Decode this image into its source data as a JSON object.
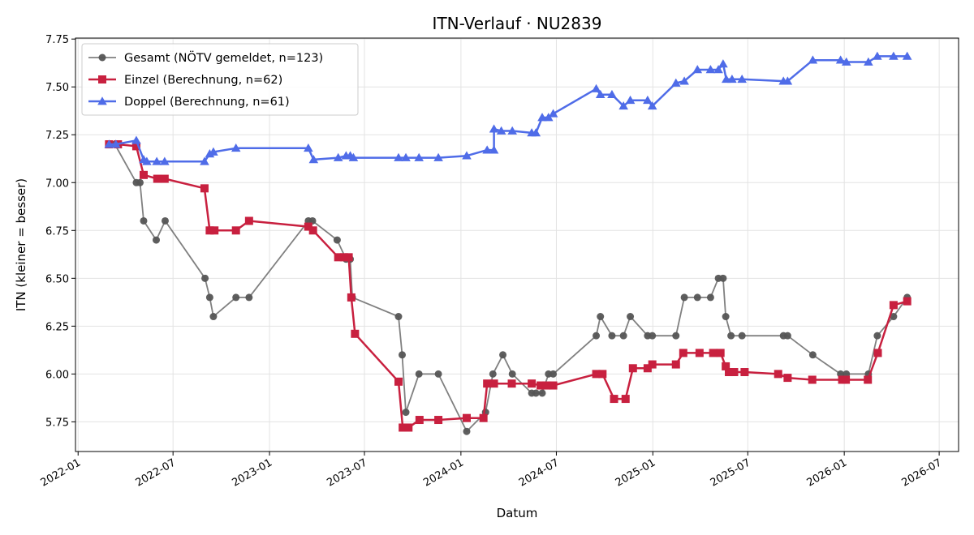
{
  "chart_data": {
    "type": "line",
    "title": "ITN-Verlauf · NU2839",
    "xlabel": "Datum",
    "ylabel": "ITN  (kleiner = besser)",
    "x_type": "date",
    "xlim": [
      "2021-12-27",
      "2026-08-07"
    ],
    "ylim": [
      5.595,
      7.755
    ],
    "yticks": [
      5.75,
      6.0,
      6.25,
      6.5,
      6.75,
      7.0,
      7.25,
      7.5,
      7.75
    ],
    "xticks": [
      "2022-01-01",
      "2022-07-01",
      "2023-01-01",
      "2023-07-01",
      "2024-01-01",
      "2024-07-01",
      "2025-01-01",
      "2025-07-01",
      "2026-01-01",
      "2026-07-01"
    ],
    "xtick_labels": [
      "2022-01",
      "2022-07",
      "2023-01",
      "2023-07",
      "2024-01",
      "2024-07",
      "2025-01",
      "2025-07",
      "2026-01",
      "2026-07"
    ],
    "grid": true,
    "legend_position": "top-left",
    "series": [
      {
        "name": "Gesamt (NÖTV gemeldet, n=123)",
        "color": "#555555",
        "marker": "circle",
        "points": [
          [
            "2022-03-01",
            7.2
          ],
          [
            "2022-03-12",
            7.2
          ],
          [
            "2022-04-22",
            7.0
          ],
          [
            "2022-04-29",
            7.0
          ],
          [
            "2022-05-06",
            6.8
          ],
          [
            "2022-05-30",
            6.7
          ],
          [
            "2022-06-16",
            6.8
          ],
          [
            "2022-08-31",
            6.5
          ],
          [
            "2022-09-09",
            6.4
          ],
          [
            "2022-09-16",
            6.3
          ],
          [
            "2022-10-29",
            6.4
          ],
          [
            "2022-11-23",
            6.4
          ],
          [
            "2023-03-16",
            6.8
          ],
          [
            "2023-03-24",
            6.8
          ],
          [
            "2023-05-10",
            6.7
          ],
          [
            "2023-05-27",
            6.6
          ],
          [
            "2023-06-04",
            6.6
          ],
          [
            "2023-06-08",
            6.4
          ],
          [
            "2023-09-04",
            6.3
          ],
          [
            "2023-09-11",
            6.1
          ],
          [
            "2023-09-18",
            5.8
          ],
          [
            "2023-10-13",
            6.0
          ],
          [
            "2023-11-19",
            6.0
          ],
          [
            "2024-01-12",
            5.7
          ],
          [
            "2024-02-17",
            5.8
          ],
          [
            "2024-03-02",
            6.0
          ],
          [
            "2024-03-21",
            6.1
          ],
          [
            "2024-04-08",
            6.0
          ],
          [
            "2024-05-15",
            5.9
          ],
          [
            "2024-05-23",
            5.9
          ],
          [
            "2024-06-04",
            5.9
          ],
          [
            "2024-06-16",
            6.0
          ],
          [
            "2024-06-25",
            6.0
          ],
          [
            "2024-09-15",
            6.2
          ],
          [
            "2024-09-23",
            6.3
          ],
          [
            "2024-10-15",
            6.2
          ],
          [
            "2024-11-06",
            6.2
          ],
          [
            "2024-11-19",
            6.3
          ],
          [
            "2024-12-22",
            6.2
          ],
          [
            "2024-12-31",
            6.2
          ],
          [
            "2025-02-14",
            6.2
          ],
          [
            "2025-03-02",
            6.4
          ],
          [
            "2025-03-27",
            6.4
          ],
          [
            "2025-04-21",
            6.4
          ],
          [
            "2025-05-06",
            6.5
          ],
          [
            "2025-05-15",
            6.5
          ],
          [
            "2025-05-20",
            6.3
          ],
          [
            "2025-05-30",
            6.2
          ],
          [
            "2025-06-20",
            6.2
          ],
          [
            "2025-09-07",
            6.2
          ],
          [
            "2025-09-15",
            6.2
          ],
          [
            "2025-11-02",
            6.1
          ],
          [
            "2025-12-25",
            6.0
          ],
          [
            "2026-01-05",
            6.0
          ],
          [
            "2026-02-16",
            6.0
          ],
          [
            "2026-03-05",
            6.2
          ],
          [
            "2026-04-05",
            6.3
          ],
          [
            "2026-05-01",
            6.4
          ]
        ]
      },
      {
        "name": "Einzel (Berechnung, n=62)",
        "color": "#c8203f",
        "marker": "square",
        "points": [
          [
            "2022-03-01",
            7.2
          ],
          [
            "2022-03-18",
            7.2
          ],
          [
            "2022-04-22",
            7.19
          ],
          [
            "2022-05-06",
            7.04
          ],
          [
            "2022-06-01",
            7.02
          ],
          [
            "2022-06-15",
            7.02
          ],
          [
            "2022-08-30",
            6.97
          ],
          [
            "2022-09-09",
            6.75
          ],
          [
            "2022-09-18",
            6.75
          ],
          [
            "2022-10-29",
            6.75
          ],
          [
            "2022-11-23",
            6.8
          ],
          [
            "2023-03-16",
            6.77
          ],
          [
            "2023-03-25",
            6.75
          ],
          [
            "2023-05-12",
            6.61
          ],
          [
            "2023-05-23",
            6.61
          ],
          [
            "2023-06-01",
            6.61
          ],
          [
            "2023-06-06",
            6.4
          ],
          [
            "2023-06-13",
            6.21
          ],
          [
            "2023-09-04",
            5.96
          ],
          [
            "2023-09-12",
            5.72
          ],
          [
            "2023-09-23",
            5.72
          ],
          [
            "2023-10-14",
            5.76
          ],
          [
            "2023-11-19",
            5.76
          ],
          [
            "2024-01-12",
            5.77
          ],
          [
            "2024-02-13",
            5.77
          ],
          [
            "2024-02-20",
            5.95
          ],
          [
            "2024-03-04",
            5.95
          ],
          [
            "2024-04-07",
            5.95
          ],
          [
            "2024-05-15",
            5.95
          ],
          [
            "2024-06-01",
            5.94
          ],
          [
            "2024-06-12",
            5.94
          ],
          [
            "2024-06-25",
            5.94
          ],
          [
            "2024-09-15",
            6.0
          ],
          [
            "2024-09-27",
            6.0
          ],
          [
            "2024-10-19",
            5.87
          ],
          [
            "2024-11-10",
            5.87
          ],
          [
            "2024-11-24",
            6.03
          ],
          [
            "2024-12-22",
            6.03
          ],
          [
            "2024-12-31",
            6.05
          ],
          [
            "2025-02-14",
            6.05
          ],
          [
            "2025-02-28",
            6.11
          ],
          [
            "2025-03-31",
            6.11
          ],
          [
            "2025-04-26",
            6.11
          ],
          [
            "2025-05-10",
            6.11
          ],
          [
            "2025-05-20",
            6.04
          ],
          [
            "2025-05-26",
            6.01
          ],
          [
            "2025-06-05",
            6.01
          ],
          [
            "2025-06-25",
            6.01
          ],
          [
            "2025-08-28",
            6.0
          ],
          [
            "2025-09-15",
            5.98
          ],
          [
            "2025-11-01",
            5.97
          ],
          [
            "2025-12-28",
            5.97
          ],
          [
            "2026-01-04",
            5.97
          ],
          [
            "2026-02-15",
            5.97
          ],
          [
            "2026-03-06",
            6.11
          ],
          [
            "2026-04-05",
            6.36
          ],
          [
            "2026-05-01",
            6.38
          ]
        ]
      },
      {
        "name": "Doppel (Berechnung, n=61)",
        "color": "#4f6ce8",
        "marker": "triangle",
        "points": [
          [
            "2022-03-01",
            7.2
          ],
          [
            "2022-03-14",
            7.2
          ],
          [
            "2022-04-22",
            7.22
          ],
          [
            "2022-05-06",
            7.12
          ],
          [
            "2022-05-12",
            7.11
          ],
          [
            "2022-05-31",
            7.11
          ],
          [
            "2022-06-15",
            7.11
          ],
          [
            "2022-08-30",
            7.11
          ],
          [
            "2022-09-09",
            7.15
          ],
          [
            "2022-09-16",
            7.16
          ],
          [
            "2022-10-29",
            7.18
          ],
          [
            "2023-03-16",
            7.18
          ],
          [
            "2023-03-26",
            7.12
          ],
          [
            "2023-05-12",
            7.13
          ],
          [
            "2023-05-27",
            7.14
          ],
          [
            "2023-06-04",
            7.14
          ],
          [
            "2023-06-10",
            7.13
          ],
          [
            "2023-09-04",
            7.13
          ],
          [
            "2023-09-18",
            7.13
          ],
          [
            "2023-10-13",
            7.13
          ],
          [
            "2023-11-19",
            7.13
          ],
          [
            "2024-01-12",
            7.14
          ],
          [
            "2024-02-20",
            7.17
          ],
          [
            "2024-03-04",
            7.17
          ],
          [
            "2024-03-04",
            7.28
          ],
          [
            "2024-03-18",
            7.27
          ],
          [
            "2024-04-08",
            7.27
          ],
          [
            "2024-05-15",
            7.26
          ],
          [
            "2024-05-23",
            7.26
          ],
          [
            "2024-06-04",
            7.34
          ],
          [
            "2024-06-16",
            7.34
          ],
          [
            "2024-06-25",
            7.36
          ],
          [
            "2024-09-15",
            7.49
          ],
          [
            "2024-09-23",
            7.46
          ],
          [
            "2024-10-15",
            7.46
          ],
          [
            "2024-11-06",
            7.4
          ],
          [
            "2024-11-19",
            7.43
          ],
          [
            "2024-12-22",
            7.43
          ],
          [
            "2024-12-31",
            7.4
          ],
          [
            "2025-02-14",
            7.52
          ],
          [
            "2025-03-02",
            7.53
          ],
          [
            "2025-03-27",
            7.59
          ],
          [
            "2025-04-21",
            7.59
          ],
          [
            "2025-05-06",
            7.59
          ],
          [
            "2025-05-15",
            7.62
          ],
          [
            "2025-05-21",
            7.54
          ],
          [
            "2025-06-01",
            7.54
          ],
          [
            "2025-06-20",
            7.54
          ],
          [
            "2025-09-07",
            7.53
          ],
          [
            "2025-09-15",
            7.53
          ],
          [
            "2025-11-02",
            7.64
          ],
          [
            "2025-12-25",
            7.64
          ],
          [
            "2026-01-05",
            7.63
          ],
          [
            "2026-02-16",
            7.63
          ],
          [
            "2026-03-05",
            7.66
          ],
          [
            "2026-04-05",
            7.66
          ],
          [
            "2026-05-01",
            7.66
          ]
        ]
      }
    ]
  }
}
